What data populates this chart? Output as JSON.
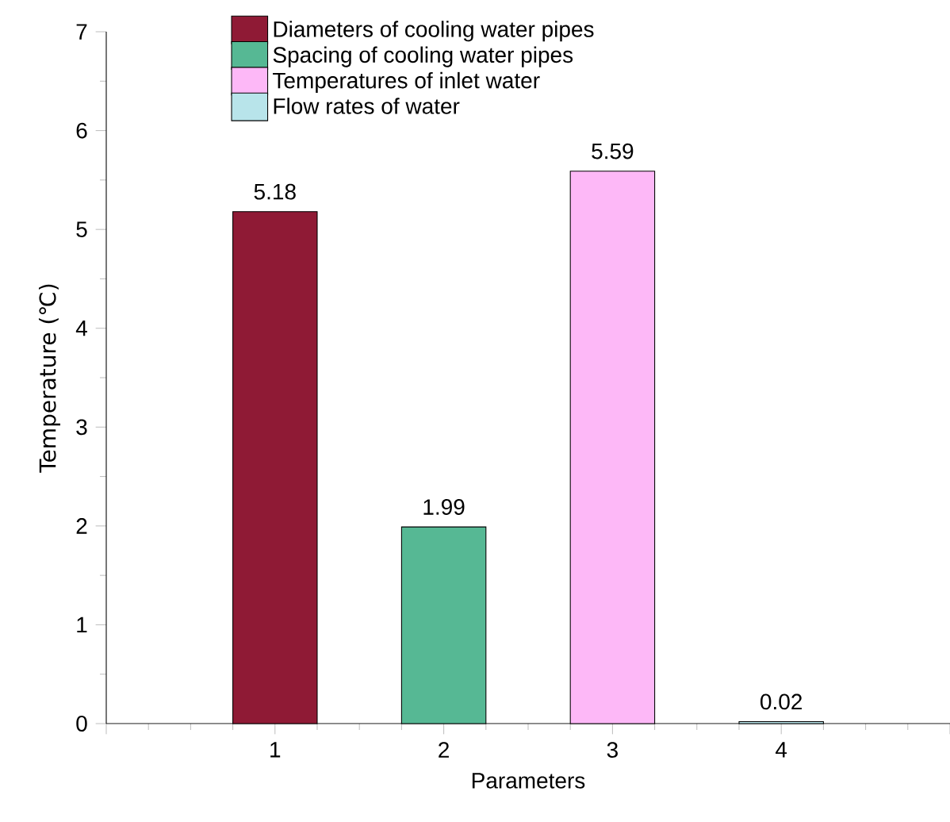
{
  "chart_data": {
    "type": "bar",
    "xlabel": "Parameters",
    "ylabel": "Temperature (℃)",
    "x": [
      1,
      2,
      3,
      4
    ],
    "series": [
      {
        "name": "Diameters of cooling water pipes",
        "color": "#8f1a35",
        "values": [
          5.18,
          null,
          null,
          null
        ]
      },
      {
        "name": "Spacing of cooling water pipes",
        "color": "#56b894",
        "values": [
          null,
          1.99,
          null,
          null
        ]
      },
      {
        "name": "Temperatures of inlet water",
        "color": "#fdb8f7",
        "values": [
          null,
          null,
          5.59,
          null
        ]
      },
      {
        "name": "Flow rates of water",
        "color": "#b8e4ea",
        "values": [
          null,
          null,
          null,
          0.02
        ]
      }
    ],
    "xlim": [
      0,
      5
    ],
    "xticks": [
      {
        "value": 0,
        "label": null
      },
      1,
      2,
      3,
      4,
      {
        "value": 5,
        "label": null
      }
    ],
    "ylim": [
      0,
      7
    ],
    "yticks": [
      0,
      1,
      2,
      3,
      4,
      5,
      6,
      7
    ],
    "data_labels": true,
    "legend": "top",
    "grid": false
  }
}
